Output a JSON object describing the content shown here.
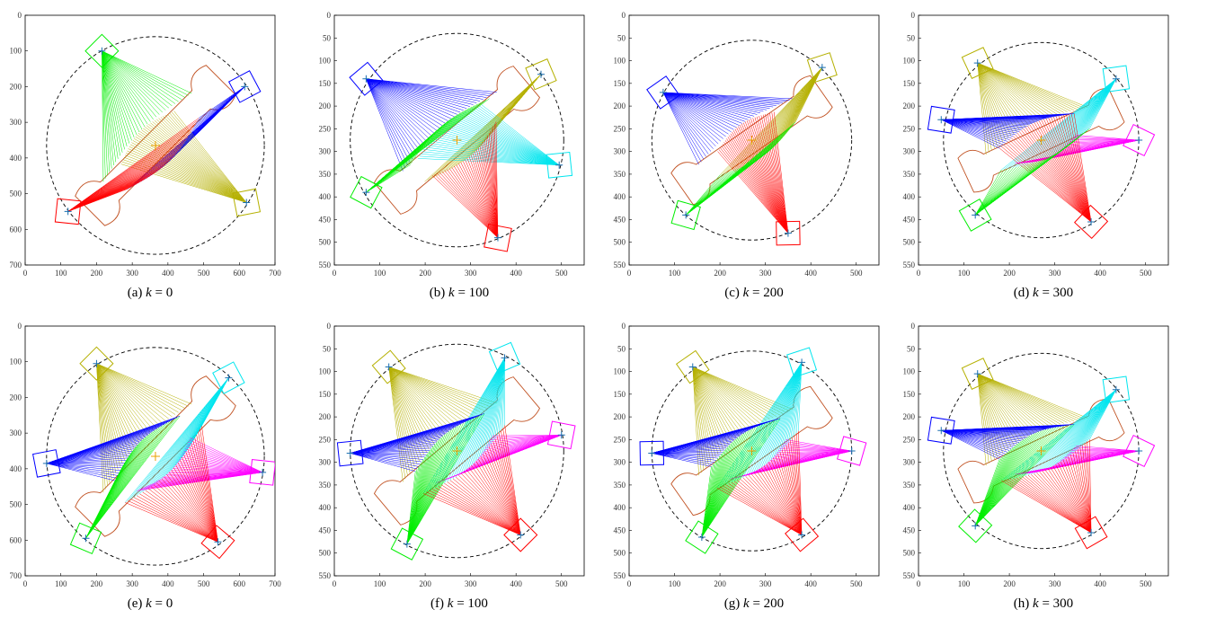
{
  "figure": {
    "panels": [
      {
        "id": "a",
        "caption_label": "(a)",
        "caption_value": "0",
        "xmax": 700,
        "ymax": 700,
        "xstep": 100,
        "ystep": 100,
        "center": [
          365,
          365
        ],
        "radius": 305
      },
      {
        "id": "b",
        "caption_label": "(b)",
        "caption_value": "100",
        "xmax": 550,
        "ymax": 550,
        "xstep": 100,
        "ystep": 50,
        "center": [
          270,
          275
        ],
        "radius": 235
      },
      {
        "id": "c",
        "caption_label": "(c)",
        "caption_value": "200",
        "xmax": 550,
        "ymax": 550,
        "xstep": 100,
        "ystep": 50,
        "center": [
          270,
          275
        ],
        "radius": 220
      },
      {
        "id": "d",
        "caption_label": "(d)",
        "caption_value": "300",
        "xmax": 550,
        "ymax": 550,
        "xstep": 100,
        "ystep": 50,
        "center": [
          270,
          275
        ],
        "radius": 215
      },
      {
        "id": "e",
        "caption_label": "(e)",
        "caption_value": "0",
        "xmax": 700,
        "ymax": 700,
        "xstep": 100,
        "ystep": 100,
        "center": [
          365,
          365
        ],
        "radius": 305
      },
      {
        "id": "f",
        "caption_label": "(f)",
        "caption_value": "100",
        "xmax": 550,
        "ymax": 550,
        "xstep": 100,
        "ystep": 50,
        "center": [
          270,
          275
        ],
        "radius": 235
      },
      {
        "id": "g",
        "caption_label": "(g)",
        "caption_value": "200",
        "xmax": 550,
        "ymax": 550,
        "xstep": 100,
        "ystep": 50,
        "center": [
          270,
          275
        ],
        "radius": 220
      },
      {
        "id": "h",
        "caption_label": "(h)",
        "caption_value": "300",
        "xmax": 550,
        "ymax": 550,
        "xstep": 100,
        "ystep": 50,
        "center": [
          270,
          275
        ],
        "radius": 215
      }
    ],
    "caption_variable": "k",
    "colors": {
      "yellow": "#b5b000",
      "blue": "#0000ff",
      "green": "#00ee00",
      "red": "#ff0000",
      "cyan": "#00e5ee",
      "magenta": "#ff00ff",
      "marker": "#1a6fb0",
      "center": "#e8a000",
      "boundary": "#c05020"
    },
    "robots": {
      "a": [
        [
          "green",
          215,
          100
        ],
        [
          "blue",
          615,
          200
        ],
        [
          "yellow",
          620,
          525
        ],
        [
          "red",
          120,
          550
        ]
      ],
      "b": [
        [
          "blue",
          70,
          140
        ],
        [
          "yellow",
          455,
          130
        ],
        [
          "cyan",
          495,
          330
        ],
        [
          "red",
          360,
          490
        ],
        [
          "green",
          70,
          390
        ]
      ],
      "c": [
        [
          "blue",
          75,
          170
        ],
        [
          "yellow",
          425,
          115
        ],
        [
          "red",
          350,
          480
        ],
        [
          "green",
          125,
          440
        ]
      ],
      "d": [
        [
          "yellow",
          130,
          105
        ],
        [
          "cyan",
          435,
          140
        ],
        [
          "blue",
          50,
          230
        ],
        [
          "magenta",
          485,
          275
        ],
        [
          "red",
          380,
          455
        ],
        [
          "green",
          125,
          440
        ]
      ],
      "e": [
        [
          "yellow",
          200,
          105
        ],
        [
          "cyan",
          570,
          145
        ],
        [
          "blue",
          60,
          385
        ],
        [
          "magenta",
          665,
          410
        ],
        [
          "green",
          170,
          595
        ],
        [
          "red",
          540,
          605
        ]
      ],
      "f": [
        [
          "yellow",
          120,
          90
        ],
        [
          "cyan",
          375,
          70
        ],
        [
          "blue",
          35,
          280
        ],
        [
          "magenta",
          500,
          240
        ],
        [
          "green",
          160,
          480
        ],
        [
          "red",
          410,
          460
        ]
      ],
      "g": [
        [
          "yellow",
          140,
          90
        ],
        [
          "cyan",
          380,
          80
        ],
        [
          "blue",
          50,
          280
        ],
        [
          "magenta",
          490,
          275
        ],
        [
          "green",
          160,
          465
        ],
        [
          "red",
          380,
          460
        ]
      ],
      "h": [
        [
          "yellow",
          130,
          105
        ],
        [
          "cyan",
          435,
          140
        ],
        [
          "blue",
          50,
          230
        ],
        [
          "magenta",
          485,
          275
        ],
        [
          "green",
          125,
          440
        ],
        [
          "red",
          380,
          455
        ]
      ]
    },
    "object_rotation_deg": {
      "a": -45,
      "b": -40,
      "c": -35,
      "d": -25,
      "e": -45,
      "f": -40,
      "g": -35,
      "h": -25
    }
  }
}
